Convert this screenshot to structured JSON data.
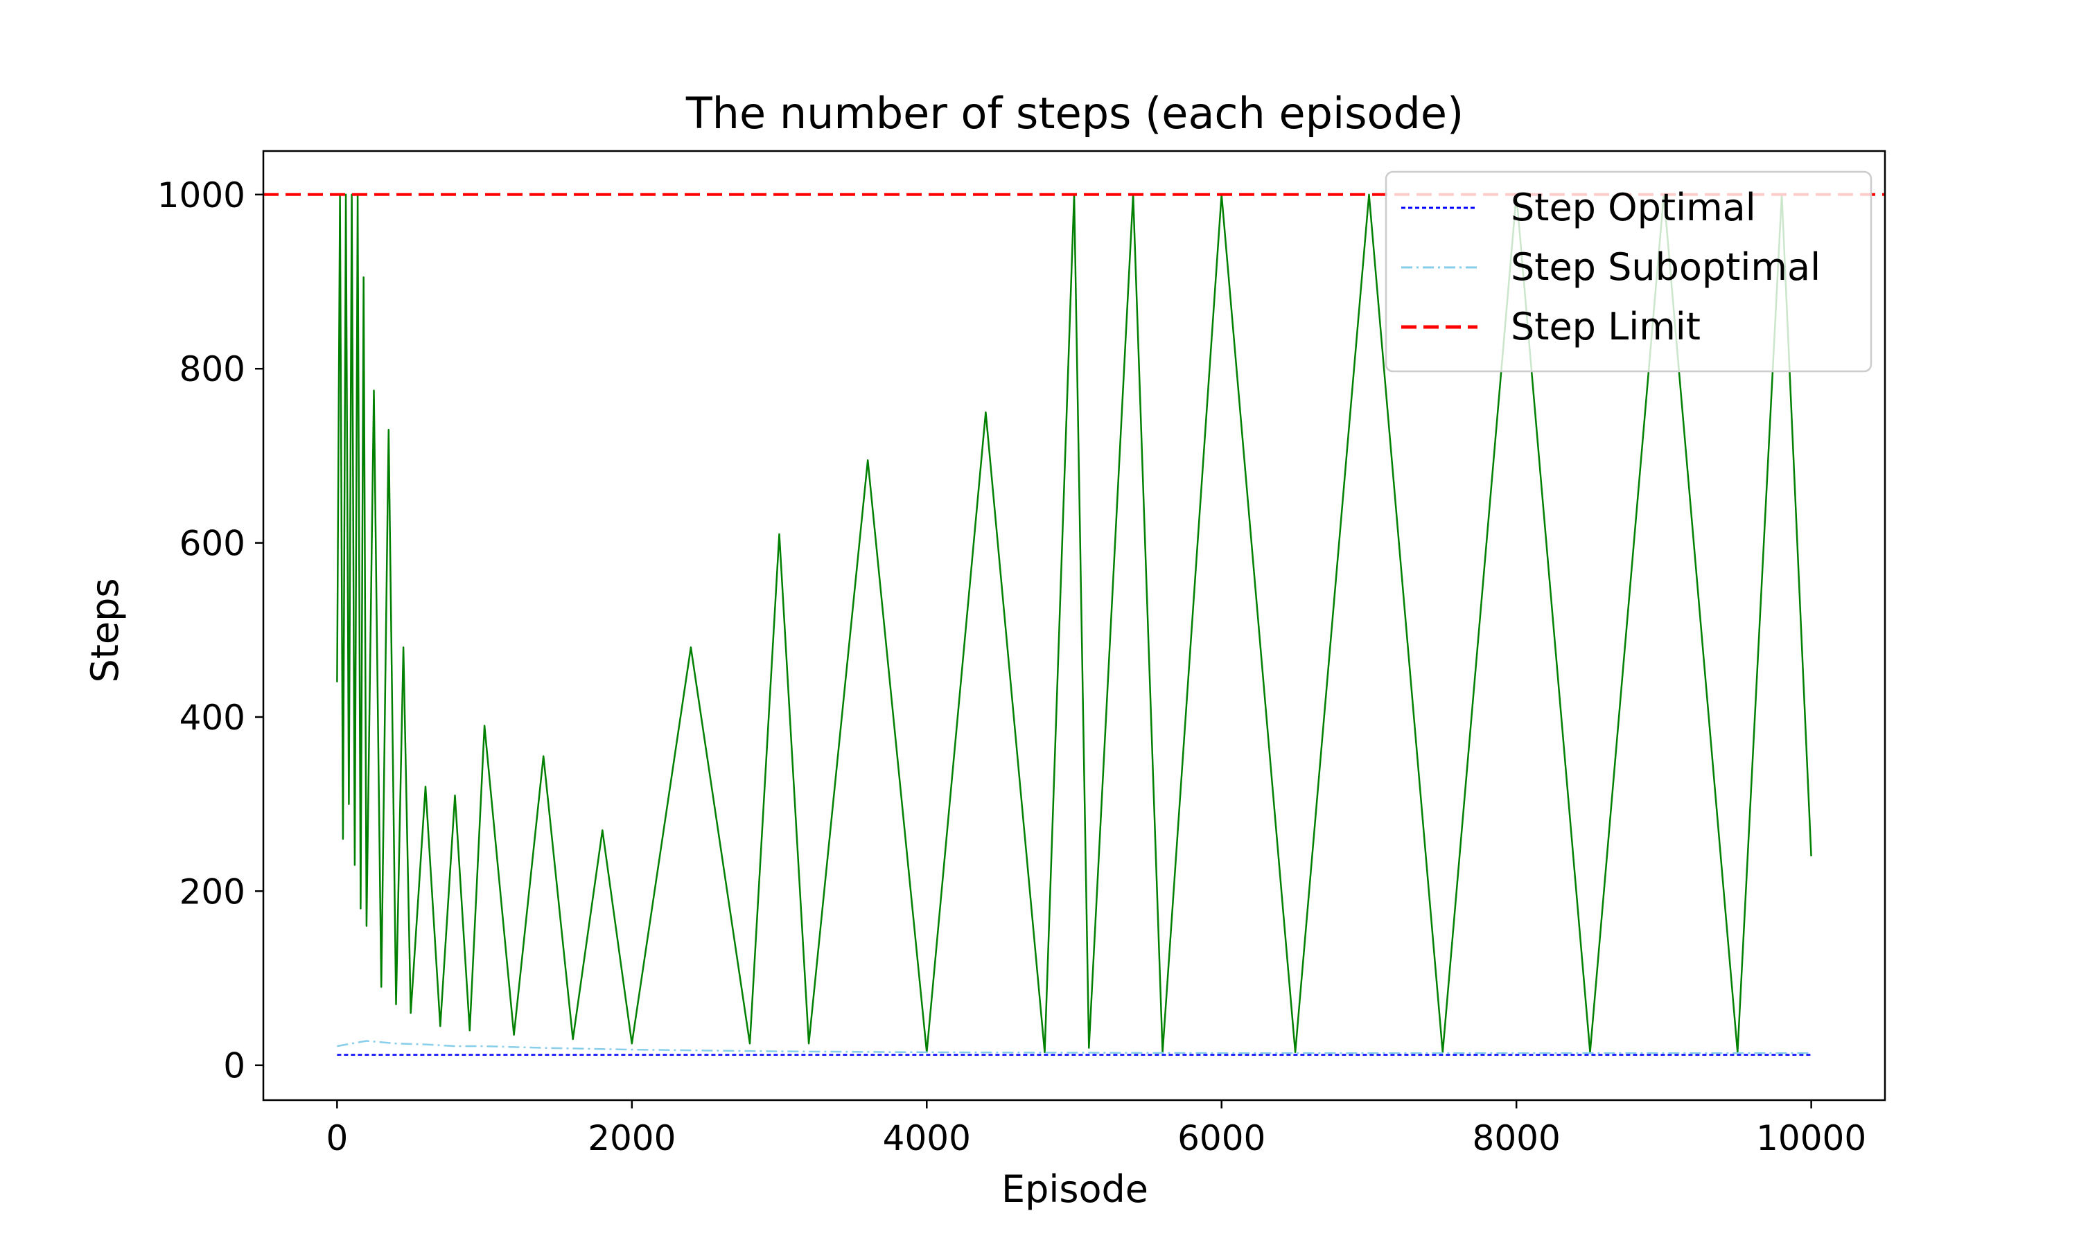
{
  "chart_data": {
    "type": "line",
    "title": "The number of steps (each episode)",
    "xlabel": "Episode",
    "ylabel": "Steps",
    "xlim": [
      -500,
      10500
    ],
    "ylim": [
      -40,
      1050
    ],
    "xticks": [
      0,
      2000,
      4000,
      6000,
      8000,
      10000
    ],
    "xtick_labels": [
      "0",
      "2000",
      "4000",
      "6000",
      "8000",
      "10000"
    ],
    "yticks": [
      0,
      200,
      400,
      600,
      800,
      1000
    ],
    "ytick_labels": [
      "0",
      "200",
      "400",
      "600",
      "800",
      "1000"
    ],
    "grid": false,
    "legend_position": "top-right",
    "step_limit": 1000,
    "series": [
      {
        "name": "Steps",
        "color": "#008000",
        "style": "solid",
        "in_legend": false,
        "x": [
          0,
          20,
          40,
          60,
          80,
          100,
          120,
          140,
          160,
          180,
          200,
          250,
          300,
          350,
          400,
          450,
          500,
          600,
          700,
          800,
          900,
          1000,
          1200,
          1400,
          1600,
          1800,
          2000,
          2400,
          2800,
          3000,
          3200,
          3600,
          4000,
          4400,
          4800,
          5000,
          5100,
          5400,
          5600,
          6000,
          6500,
          7000,
          7500,
          8000,
          8500,
          9000,
          9500,
          9800,
          10000
        ],
        "y": [
          440,
          1000,
          260,
          1000,
          300,
          1000,
          230,
          1000,
          180,
          905,
          160,
          775,
          90,
          730,
          70,
          480,
          60,
          320,
          45,
          310,
          40,
          390,
          35,
          355,
          30,
          270,
          25,
          480,
          25,
          610,
          25,
          695,
          15,
          750,
          15,
          1000,
          20,
          1000,
          15,
          1000,
          15,
          1000,
          15,
          1000,
          15,
          1000,
          15,
          1000,
          240
        ]
      },
      {
        "name": "Step Optimal",
        "color": "#0000ff",
        "style": "dotted",
        "in_legend": true,
        "x": [
          0,
          2000,
          4000,
          6000,
          8000,
          10000
        ],
        "y": [
          12,
          12,
          12,
          12,
          12,
          12
        ]
      },
      {
        "name": "Step Suboptimal",
        "color": "#87ceeb",
        "style": "dashdot",
        "in_legend": true,
        "x": [
          0,
          200,
          400,
          600,
          800,
          1000,
          1400,
          2000,
          3000,
          4000,
          6000,
          8000,
          10000
        ],
        "y": [
          22,
          28,
          25,
          24,
          22,
          22,
          20,
          18,
          16,
          15,
          14,
          14,
          14
        ]
      },
      {
        "name": "Step Limit",
        "color": "#ff0000",
        "style": "dashed",
        "in_legend": true,
        "x": [
          -500,
          10500
        ],
        "y": [
          1000,
          1000
        ]
      }
    ]
  }
}
